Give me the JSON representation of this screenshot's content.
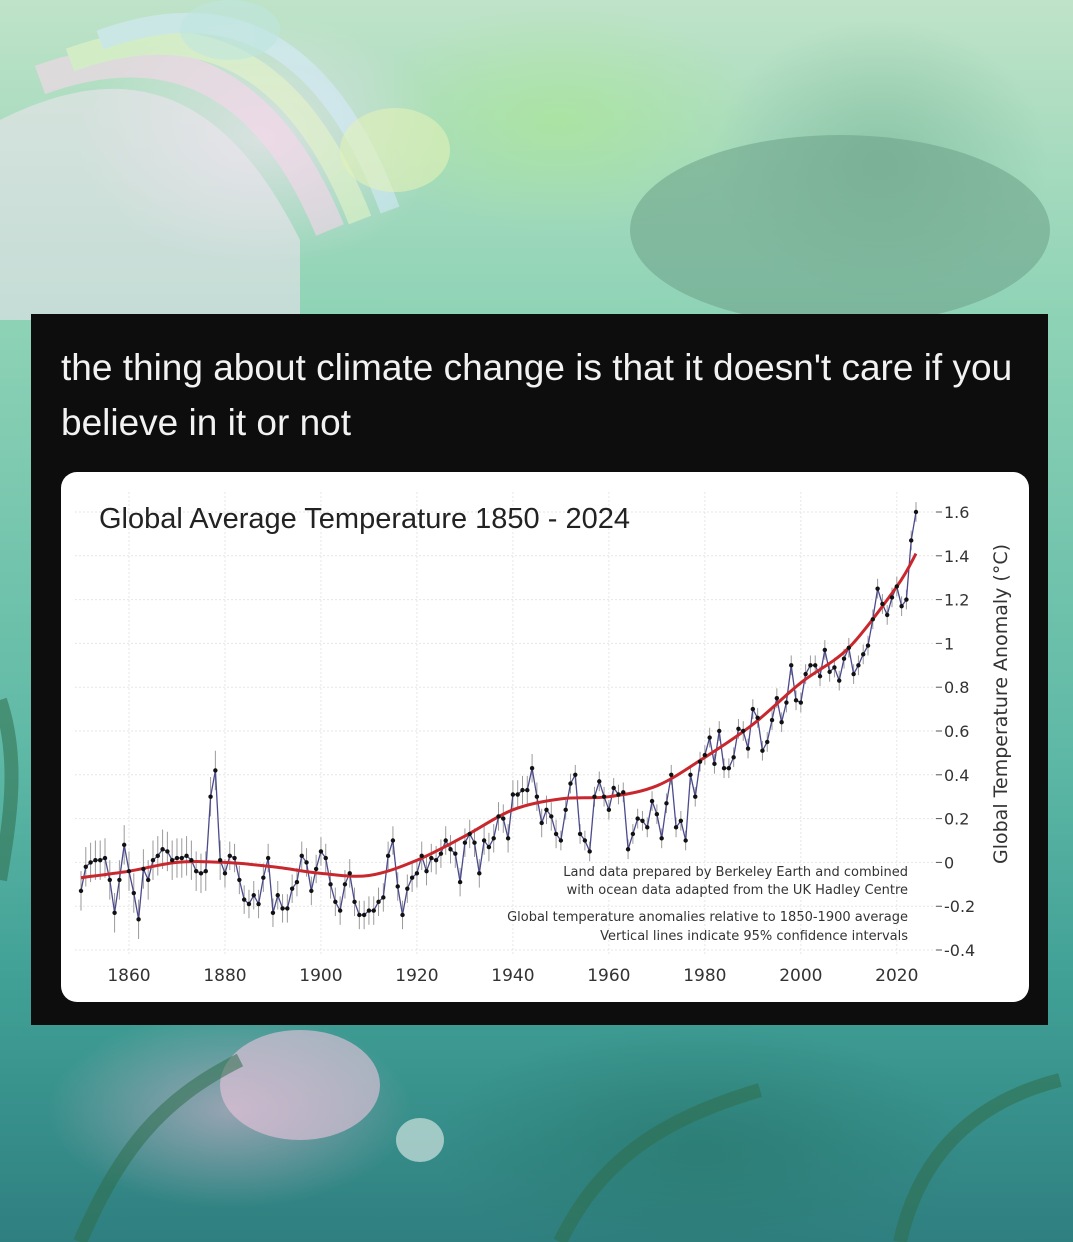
{
  "post": {
    "caption": "the thing about climate change is that it doesn't care if you believe in it or not"
  },
  "chart_data": {
    "type": "line",
    "title": "Global Average Temperature 1850 - 2024",
    "xlabel": "",
    "ylabel": "Global Temperature Anomaly (°C)",
    "xlim": [
      1850,
      2024
    ],
    "ylim": [
      -0.4,
      1.6
    ],
    "x_ticks": [
      1860,
      1880,
      1900,
      1920,
      1940,
      1960,
      1980,
      2000,
      2020
    ],
    "y_ticks": [
      -0.4,
      -0.2,
      0,
      0.2,
      0.4,
      0.6,
      0.8,
      1,
      1.2,
      1.4,
      1.6
    ],
    "y_tick_labels": [
      "-0.4",
      "-0.2",
      "0",
      "0.2",
      "0.4",
      "0.6",
      "0.8",
      "1",
      "1.2",
      "1.4",
      "1.6"
    ],
    "y_axis_side": "right",
    "grid": true,
    "notes": [
      "Land data prepared by Berkeley Earth and combined",
      "with ocean data adapted from the UK Hadley Centre",
      "Global temperature anomalies relative to 1850-1900 average",
      "Vertical lines indicate 95% confidence intervals"
    ],
    "colors": {
      "annual": "#4a4a8c",
      "points": "#111111",
      "smooth": "#c8282d",
      "ci": "#9a9a9a"
    },
    "series": [
      {
        "style": "annual points with confidence intervals",
        "x": [
          1850,
          1851,
          1852,
          1853,
          1854,
          1855,
          1856,
          1857,
          1858,
          1859,
          1860,
          1861,
          1862,
          1863,
          1864,
          1865,
          1866,
          1867,
          1868,
          1869,
          1870,
          1871,
          1872,
          1873,
          1874,
          1875,
          1876,
          1877,
          1878,
          1879,
          1880,
          1881,
          1882,
          1883,
          1884,
          1885,
          1886,
          1887,
          1888,
          1889,
          1890,
          1891,
          1892,
          1893,
          1894,
          1895,
          1896,
          1897,
          1898,
          1899,
          1900,
          1901,
          1902,
          1903,
          1904,
          1905,
          1906,
          1907,
          1908,
          1909,
          1910,
          1911,
          1912,
          1913,
          1914,
          1915,
          1916,
          1917,
          1918,
          1919,
          1920,
          1921,
          1922,
          1923,
          1924,
          1925,
          1926,
          1927,
          1928,
          1929,
          1930,
          1931,
          1932,
          1933,
          1934,
          1935,
          1936,
          1937,
          1938,
          1939,
          1940,
          1941,
          1942,
          1943,
          1944,
          1945,
          1946,
          1947,
          1948,
          1949,
          1950,
          1951,
          1952,
          1953,
          1954,
          1955,
          1956,
          1957,
          1958,
          1959,
          1960,
          1961,
          1962,
          1963,
          1964,
          1965,
          1966,
          1967,
          1968,
          1969,
          1970,
          1971,
          1972,
          1973,
          1974,
          1975,
          1976,
          1977,
          1978,
          1979,
          1980,
          1981,
          1982,
          1983,
          1984,
          1985,
          1986,
          1987,
          1988,
          1989,
          1990,
          1991,
          1992,
          1993,
          1994,
          1995,
          1996,
          1997,
          1998,
          1999,
          2000,
          2001,
          2002,
          2003,
          2004,
          2005,
          2006,
          2007,
          2008,
          2009,
          2010,
          2011,
          2012,
          2013,
          2014,
          2015,
          2016,
          2017,
          2018,
          2019,
          2020,
          2021,
          2022,
          2023,
          2024
        ],
        "y": [
          -0.13,
          -0.02,
          0.0,
          0.01,
          0.01,
          0.02,
          -0.08,
          -0.23,
          -0.08,
          0.08,
          -0.04,
          -0.14,
          -0.26,
          -0.03,
          -0.08,
          0.01,
          0.03,
          0.06,
          0.05,
          0.01,
          0.02,
          0.02,
          0.03,
          0.01,
          -0.04,
          -0.05,
          -0.04,
          0.3,
          0.42,
          0.01,
          -0.05,
          0.03,
          0.02,
          -0.08,
          -0.17,
          -0.19,
          -0.15,
          -0.19,
          -0.07,
          0.02,
          -0.23,
          -0.15,
          -0.21,
          -0.21,
          -0.12,
          -0.09,
          0.03,
          0.0,
          -0.13,
          -0.03,
          0.05,
          0.02,
          -0.1,
          -0.18,
          -0.22,
          -0.1,
          -0.05,
          -0.18,
          -0.24,
          -0.24,
          -0.22,
          -0.22,
          -0.18,
          -0.16,
          0.03,
          0.1,
          -0.11,
          -0.24,
          -0.12,
          -0.07,
          -0.05,
          0.03,
          -0.04,
          0.02,
          0.01,
          0.04,
          0.1,
          0.06,
          0.04,
          -0.09,
          0.09,
          0.13,
          0.09,
          -0.05,
          0.1,
          0.07,
          0.11,
          0.21,
          0.2,
          0.11,
          0.31,
          0.31,
          0.33,
          0.33,
          0.43,
          0.3,
          0.18,
          0.24,
          0.21,
          0.13,
          0.1,
          0.24,
          0.36,
          0.4,
          0.13,
          0.1,
          0.05,
          0.3,
          0.37,
          0.3,
          0.24,
          0.34,
          0.31,
          0.32,
          0.06,
          0.13,
          0.2,
          0.19,
          0.16,
          0.28,
          0.22,
          0.11,
          0.27,
          0.4,
          0.16,
          0.19,
          0.1,
          0.4,
          0.3,
          0.46,
          0.49,
          0.57,
          0.45,
          0.6,
          0.43,
          0.43,
          0.48,
          0.61,
          0.6,
          0.52,
          0.7,
          0.66,
          0.51,
          0.55,
          0.65,
          0.75,
          0.64,
          0.73,
          0.9,
          0.74,
          0.73,
          0.86,
          0.9,
          0.9,
          0.85,
          0.97,
          0.87,
          0.89,
          0.83,
          0.93,
          0.98,
          0.86,
          0.9,
          0.95,
          0.99,
          1.11,
          1.25,
          1.18,
          1.13,
          1.21,
          1.26,
          1.17,
          1.2,
          1.47,
          1.6
        ]
      },
      {
        "style": "smoothed trend line",
        "x": [
          1850,
          1860,
          1870,
          1880,
          1890,
          1900,
          1910,
          1920,
          1930,
          1940,
          1950,
          1960,
          1970,
          1980,
          1990,
          2000,
          2010,
          2020,
          2024
        ],
        "y": [
          -0.07,
          -0.04,
          0.0,
          0.0,
          -0.02,
          -0.05,
          -0.06,
          0.01,
          0.12,
          0.24,
          0.29,
          0.3,
          0.35,
          0.48,
          0.63,
          0.82,
          0.98,
          1.26,
          1.41
        ]
      }
    ]
  }
}
